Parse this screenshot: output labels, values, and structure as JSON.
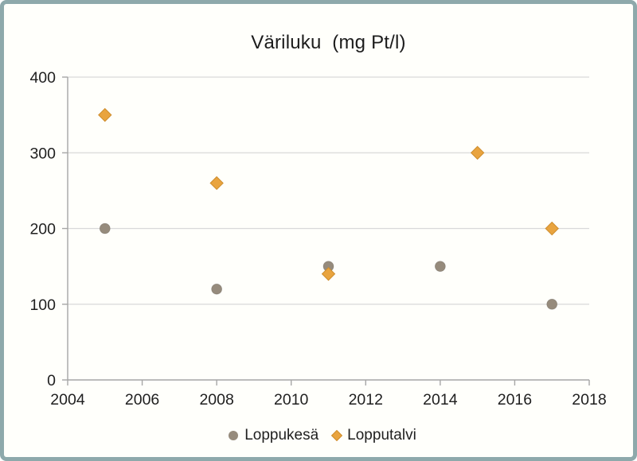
{
  "window": {
    "background_color": "#fffffb",
    "frame_border_color": "#8ea9ab"
  },
  "chart_data": {
    "type": "scatter",
    "title": "Väriluku  (mg Pt/l)",
    "xlabel": "",
    "ylabel": "",
    "xlim": [
      2004,
      2018
    ],
    "ylim": [
      0,
      400
    ],
    "x_ticks": [
      2004,
      2006,
      2008,
      2010,
      2012,
      2014,
      2016,
      2018
    ],
    "y_ticks": [
      0,
      100,
      200,
      300,
      400
    ],
    "grid": "horizontal",
    "gridline_color": "#d9d9d9",
    "axis_color": "#a6a6a6",
    "tick_label_color": "#1f1f1f",
    "legend_position": "bottom",
    "series": [
      {
        "name": "Loppukesä",
        "marker": "circle",
        "color": "#968b7c",
        "points": [
          [
            2005,
            200
          ],
          [
            2008,
            120
          ],
          [
            2011,
            150
          ],
          [
            2014,
            150
          ],
          [
            2017,
            100
          ]
        ]
      },
      {
        "name": "Lopputalvi",
        "marker": "diamond",
        "color": "#e9a43f",
        "marker_stroke": "#ce8d2c",
        "points": [
          [
            2005,
            350
          ],
          [
            2008,
            260
          ],
          [
            2011,
            140
          ],
          [
            2015,
            300
          ],
          [
            2017,
            200
          ]
        ]
      }
    ]
  }
}
